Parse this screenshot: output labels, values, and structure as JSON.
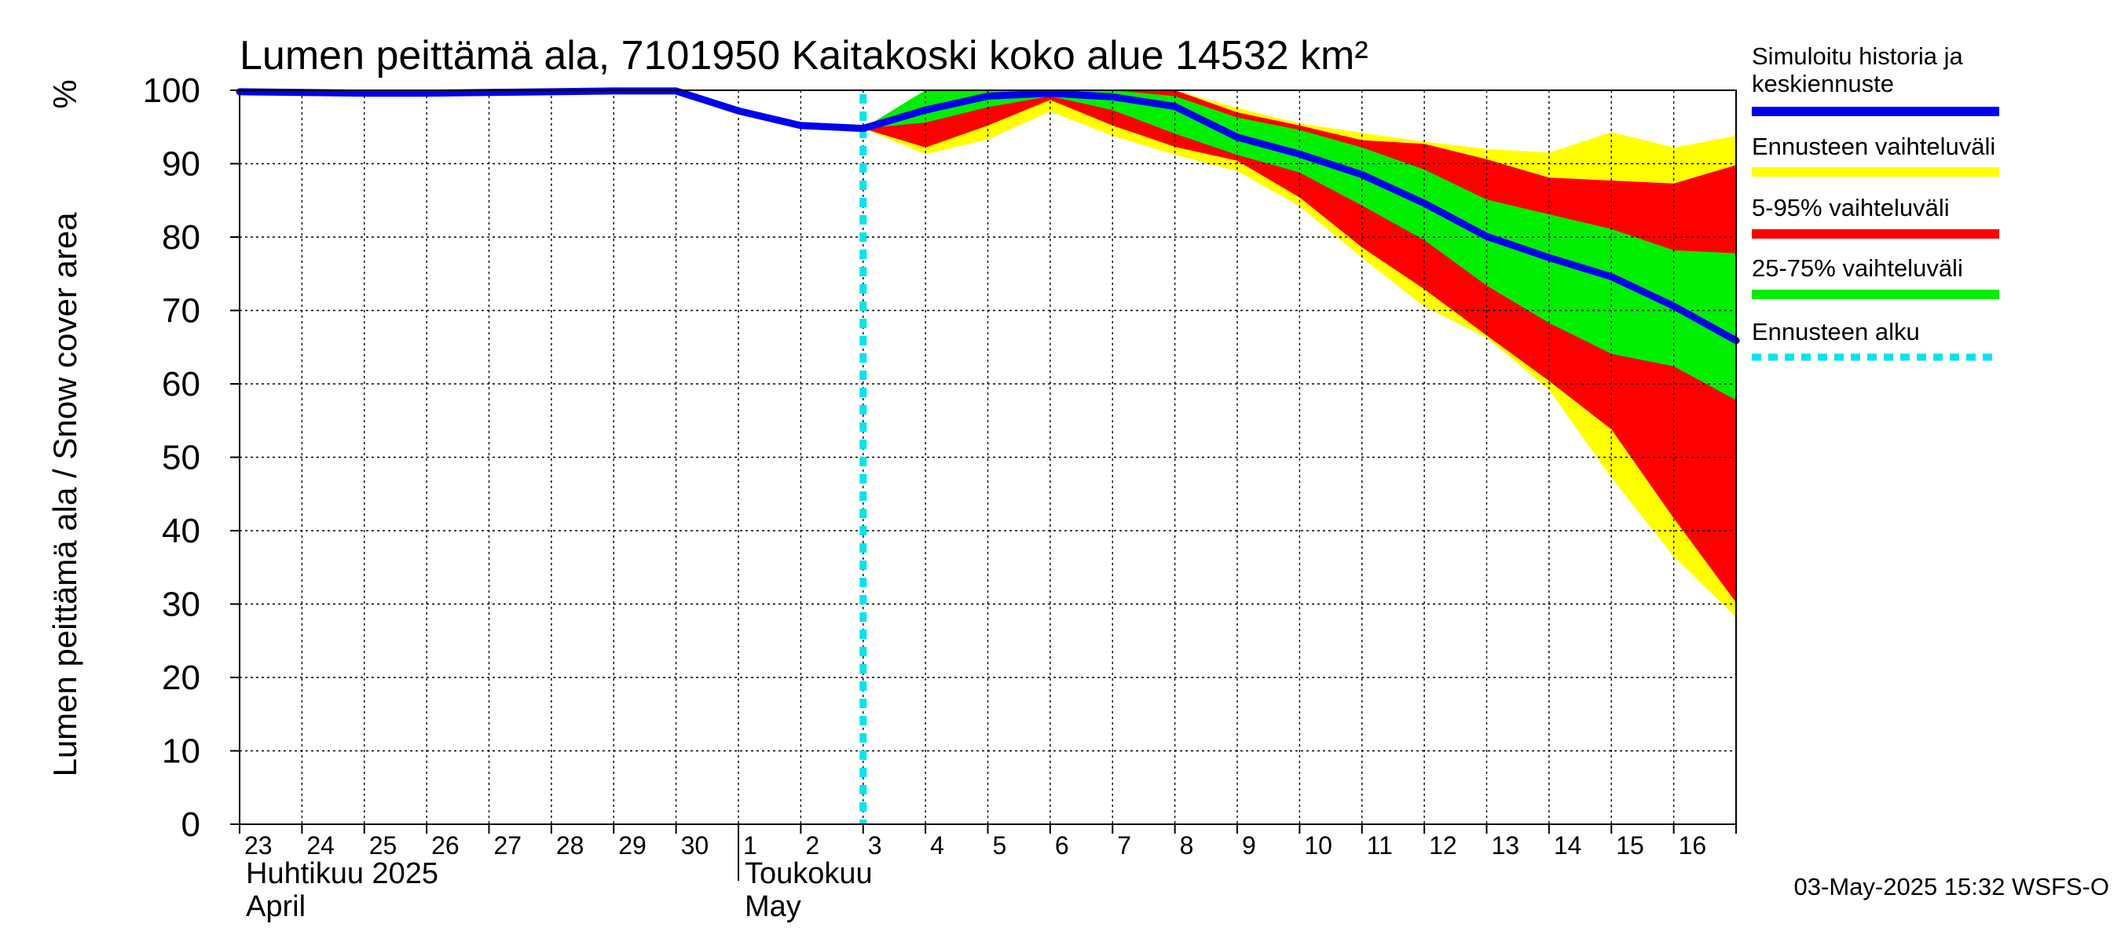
{
  "chart_data": {
    "type": "area",
    "title": "Lumen peittämä ala, 7101950 Kaitakoski koko alue 14532 km²",
    "ylabel": "Lumen peittämä ala / Snow cover area",
    "yunit": "%",
    "ylim": [
      0,
      100
    ],
    "yticks": [
      0,
      10,
      20,
      30,
      40,
      50,
      60,
      70,
      80,
      90,
      100
    ],
    "xlim": [
      "2025-04-23",
      "2025-05-17"
    ],
    "x_tick_labels": [
      "23",
      "24",
      "25",
      "26",
      "27",
      "28",
      "29",
      "30",
      "1",
      "2",
      "3",
      "4",
      "5",
      "6",
      "7",
      "8",
      "9",
      "10",
      "11",
      "12",
      "13",
      "14",
      "15",
      "16"
    ],
    "months": [
      {
        "line1": "Huhtikuu  2025",
        "line2": "April",
        "start": "2025-04-23"
      },
      {
        "line1": "Toukokuu",
        "line2": "May",
        "start": "2025-05-01"
      }
    ],
    "grid": true,
    "forecast_start": "2025-05-03",
    "series": [
      {
        "name": "Simuloitu historia ja keskiennuste",
        "color": "#0000ee",
        "x": [
          "2025-04-23",
          "2025-04-24",
          "2025-04-25",
          "2025-04-26",
          "2025-04-27",
          "2025-04-28",
          "2025-04-29",
          "2025-04-30",
          "2025-05-01",
          "2025-05-02",
          "2025-05-03",
          "2025-05-04",
          "2025-05-05",
          "2025-05-06",
          "2025-05-07",
          "2025-05-08",
          "2025-05-09",
          "2025-05-10",
          "2025-05-11",
          "2025-05-12",
          "2025-05-13",
          "2025-05-14",
          "2025-05-15",
          "2025-05-16",
          "2025-05-17"
        ],
        "values": [
          99.8,
          99.7,
          99.6,
          99.6,
          99.7,
          99.8,
          99.9,
          99.9,
          97.2,
          95.2,
          94.8,
          97.3,
          99.2,
          99.6,
          99.1,
          97.8,
          93.6,
          91.3,
          88.5,
          84.6,
          80.1,
          77.2,
          74.6,
          70.6,
          65.9
        ]
      }
    ],
    "bands": [
      {
        "name": "Ennusteen vaihteluväli",
        "color": "#ffff00",
        "x": [
          "2025-05-03",
          "2025-05-04",
          "2025-05-05",
          "2025-05-06",
          "2025-05-07",
          "2025-05-08",
          "2025-05-09",
          "2025-05-10",
          "2025-05-11",
          "2025-05-12",
          "2025-05-13",
          "2025-05-14",
          "2025-05-15",
          "2025-05-16",
          "2025-05-17"
        ],
        "lower": [
          94.8,
          91.3,
          93.3,
          97.1,
          93.8,
          91.2,
          89.0,
          84.2,
          77.2,
          70.5,
          66.3,
          59.2,
          47.2,
          36.5,
          28.2
        ],
        "upper": [
          94.8,
          100.0,
          100.0,
          100.0,
          100.0,
          100.0,
          97.6,
          95.5,
          94.2,
          93.0,
          92.0,
          91.5,
          94.3,
          92.2,
          93.8
        ]
      },
      {
        "name": "5-95% vaihteluväli",
        "color": "#ff0000",
        "x": [
          "2025-05-03",
          "2025-05-04",
          "2025-05-05",
          "2025-05-06",
          "2025-05-07",
          "2025-05-08",
          "2025-05-09",
          "2025-05-10",
          "2025-05-11",
          "2025-05-12",
          "2025-05-13",
          "2025-05-14",
          "2025-05-15",
          "2025-05-16",
          "2025-05-17"
        ],
        "lower": [
          94.8,
          92.2,
          95.2,
          98.7,
          95.2,
          92.3,
          90.4,
          85.4,
          78.6,
          72.9,
          66.6,
          60.4,
          53.8,
          41.7,
          30.2
        ],
        "upper": [
          94.8,
          100.0,
          100.0,
          100.0,
          100.0,
          100.0,
          97.0,
          95.2,
          93.2,
          92.7,
          90.6,
          88.1,
          87.7,
          87.3,
          89.8
        ]
      },
      {
        "name": "25-75% vaihteluväli",
        "color": "#00ee00",
        "x": [
          "2025-05-03",
          "2025-05-04",
          "2025-05-05",
          "2025-05-06",
          "2025-05-07",
          "2025-05-08",
          "2025-05-09",
          "2025-05-10",
          "2025-05-11",
          "2025-05-12",
          "2025-05-13",
          "2025-05-14",
          "2025-05-15",
          "2025-05-16",
          "2025-05-17"
        ],
        "lower": [
          94.8,
          95.6,
          97.7,
          99.2,
          97.3,
          94.1,
          91.2,
          88.8,
          84.3,
          79.6,
          73.4,
          68.3,
          64.1,
          62.4,
          57.8
        ],
        "upper": [
          94.8,
          100.0,
          100.0,
          100.0,
          100.0,
          99.2,
          96.3,
          94.6,
          92.2,
          89.2,
          85.1,
          83.1,
          81.1,
          78.2,
          77.8
        ]
      }
    ],
    "legend": {
      "placement": "right",
      "entries": [
        {
          "label_lines": [
            "Simuloitu historia ja",
            "keskiennuste"
          ],
          "color": "#0000ee",
          "style": "solid"
        },
        {
          "label_lines": [
            "Ennusteen vaihteluväli"
          ],
          "color": "#ffff00",
          "style": "solid"
        },
        {
          "label_lines": [
            "5-95% vaihteluväli"
          ],
          "color": "#ff0000",
          "style": "solid"
        },
        {
          "label_lines": [
            "25-75% vaihteluväli"
          ],
          "color": "#00ee00",
          "style": "solid"
        },
        {
          "label_lines": [
            "Ennusteen alku"
          ],
          "color": "#00e5ee",
          "style": "dotted"
        }
      ]
    },
    "timestamp": "03-May-2025 15:32 WSFS-O"
  }
}
